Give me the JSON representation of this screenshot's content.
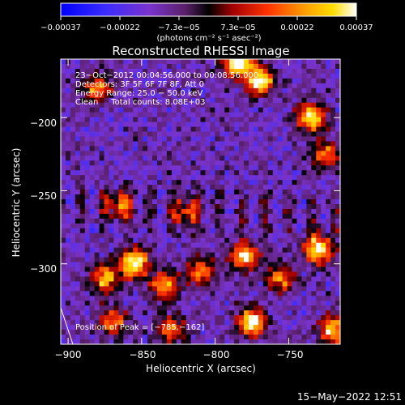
{
  "colorbar": {
    "ticks": [
      "−0.00037",
      "−0.00022",
      "−7.3e−05",
      "7.3e−05",
      "0.00022",
      "0.00037"
    ],
    "units": "(photons cm⁻² s⁻¹ asec⁻²)",
    "range": [
      -0.00037,
      0.00037
    ]
  },
  "chart_data": {
    "type": "heatmap",
    "title": "Reconstructed RHESSI Image",
    "xlabel": "Heliocentric X (arcsec)",
    "ylabel": "Heliocentric Y (arcsec)",
    "xlim": [
      -905,
      -715
    ],
    "ylim": [
      -355,
      -160
    ],
    "x_ticks": [
      -900,
      -850,
      -800,
      -750
    ],
    "y_ticks": [
      -200,
      -250,
      -300
    ],
    "x_tick_labels": [
      "−900",
      "−850",
      "−800",
      "−750"
    ],
    "y_tick_labels": [
      "−200",
      "−250",
      "−300"
    ],
    "info_lines": [
      "23−Oct−2012 00:04:56.000 to 00:08:56.000",
      "Detectors: 3F 5F 6F 7F 8F, Att 0",
      "Energy Range: 25.0 − 50.0 keV",
      "Clean     Total counts: 8.08E+03"
    ],
    "peak_label": "Position of Peak = [−785,−162]",
    "peak_position": [
      -785,
      -162
    ],
    "hot_spots": [
      {
        "x": -785,
        "y": -162,
        "v": 1.0
      },
      {
        "x": -770,
        "y": -175,
        "v": 0.9
      },
      {
        "x": -735,
        "y": -200,
        "v": 0.85
      },
      {
        "x": -880,
        "y": -180,
        "v": 0.6
      },
      {
        "x": -865,
        "y": -260,
        "v": 0.55
      },
      {
        "x": -855,
        "y": -300,
        "v": 0.95
      },
      {
        "x": -875,
        "y": -310,
        "v": 0.7
      },
      {
        "x": -835,
        "y": -315,
        "v": 0.65
      },
      {
        "x": -810,
        "y": -305,
        "v": 0.6
      },
      {
        "x": -780,
        "y": -295,
        "v": 0.75
      },
      {
        "x": -755,
        "y": -310,
        "v": 0.6
      },
      {
        "x": -730,
        "y": -290,
        "v": 0.85
      },
      {
        "x": -775,
        "y": -340,
        "v": 0.9
      },
      {
        "x": -720,
        "y": -345,
        "v": 0.75
      },
      {
        "x": -870,
        "y": -340,
        "v": 0.6
      },
      {
        "x": -830,
        "y": -345,
        "v": 0.55
      },
      {
        "x": -725,
        "y": -225,
        "v": 0.55
      },
      {
        "x": -820,
        "y": -265,
        "v": 0.45
      }
    ]
  },
  "footer": {
    "timestamp": "15−May−2022 12:51"
  },
  "colors": {
    "background": "#000000",
    "axis": "#ffffff",
    "colormap": [
      "#0000ff",
      "#3a2cff",
      "#6a2bd8",
      "#8c3ec0",
      "#000000",
      "#b00000",
      "#ff3300",
      "#ff8c00",
      "#ffd200",
      "#ffffa0",
      "#ffffff"
    ]
  }
}
